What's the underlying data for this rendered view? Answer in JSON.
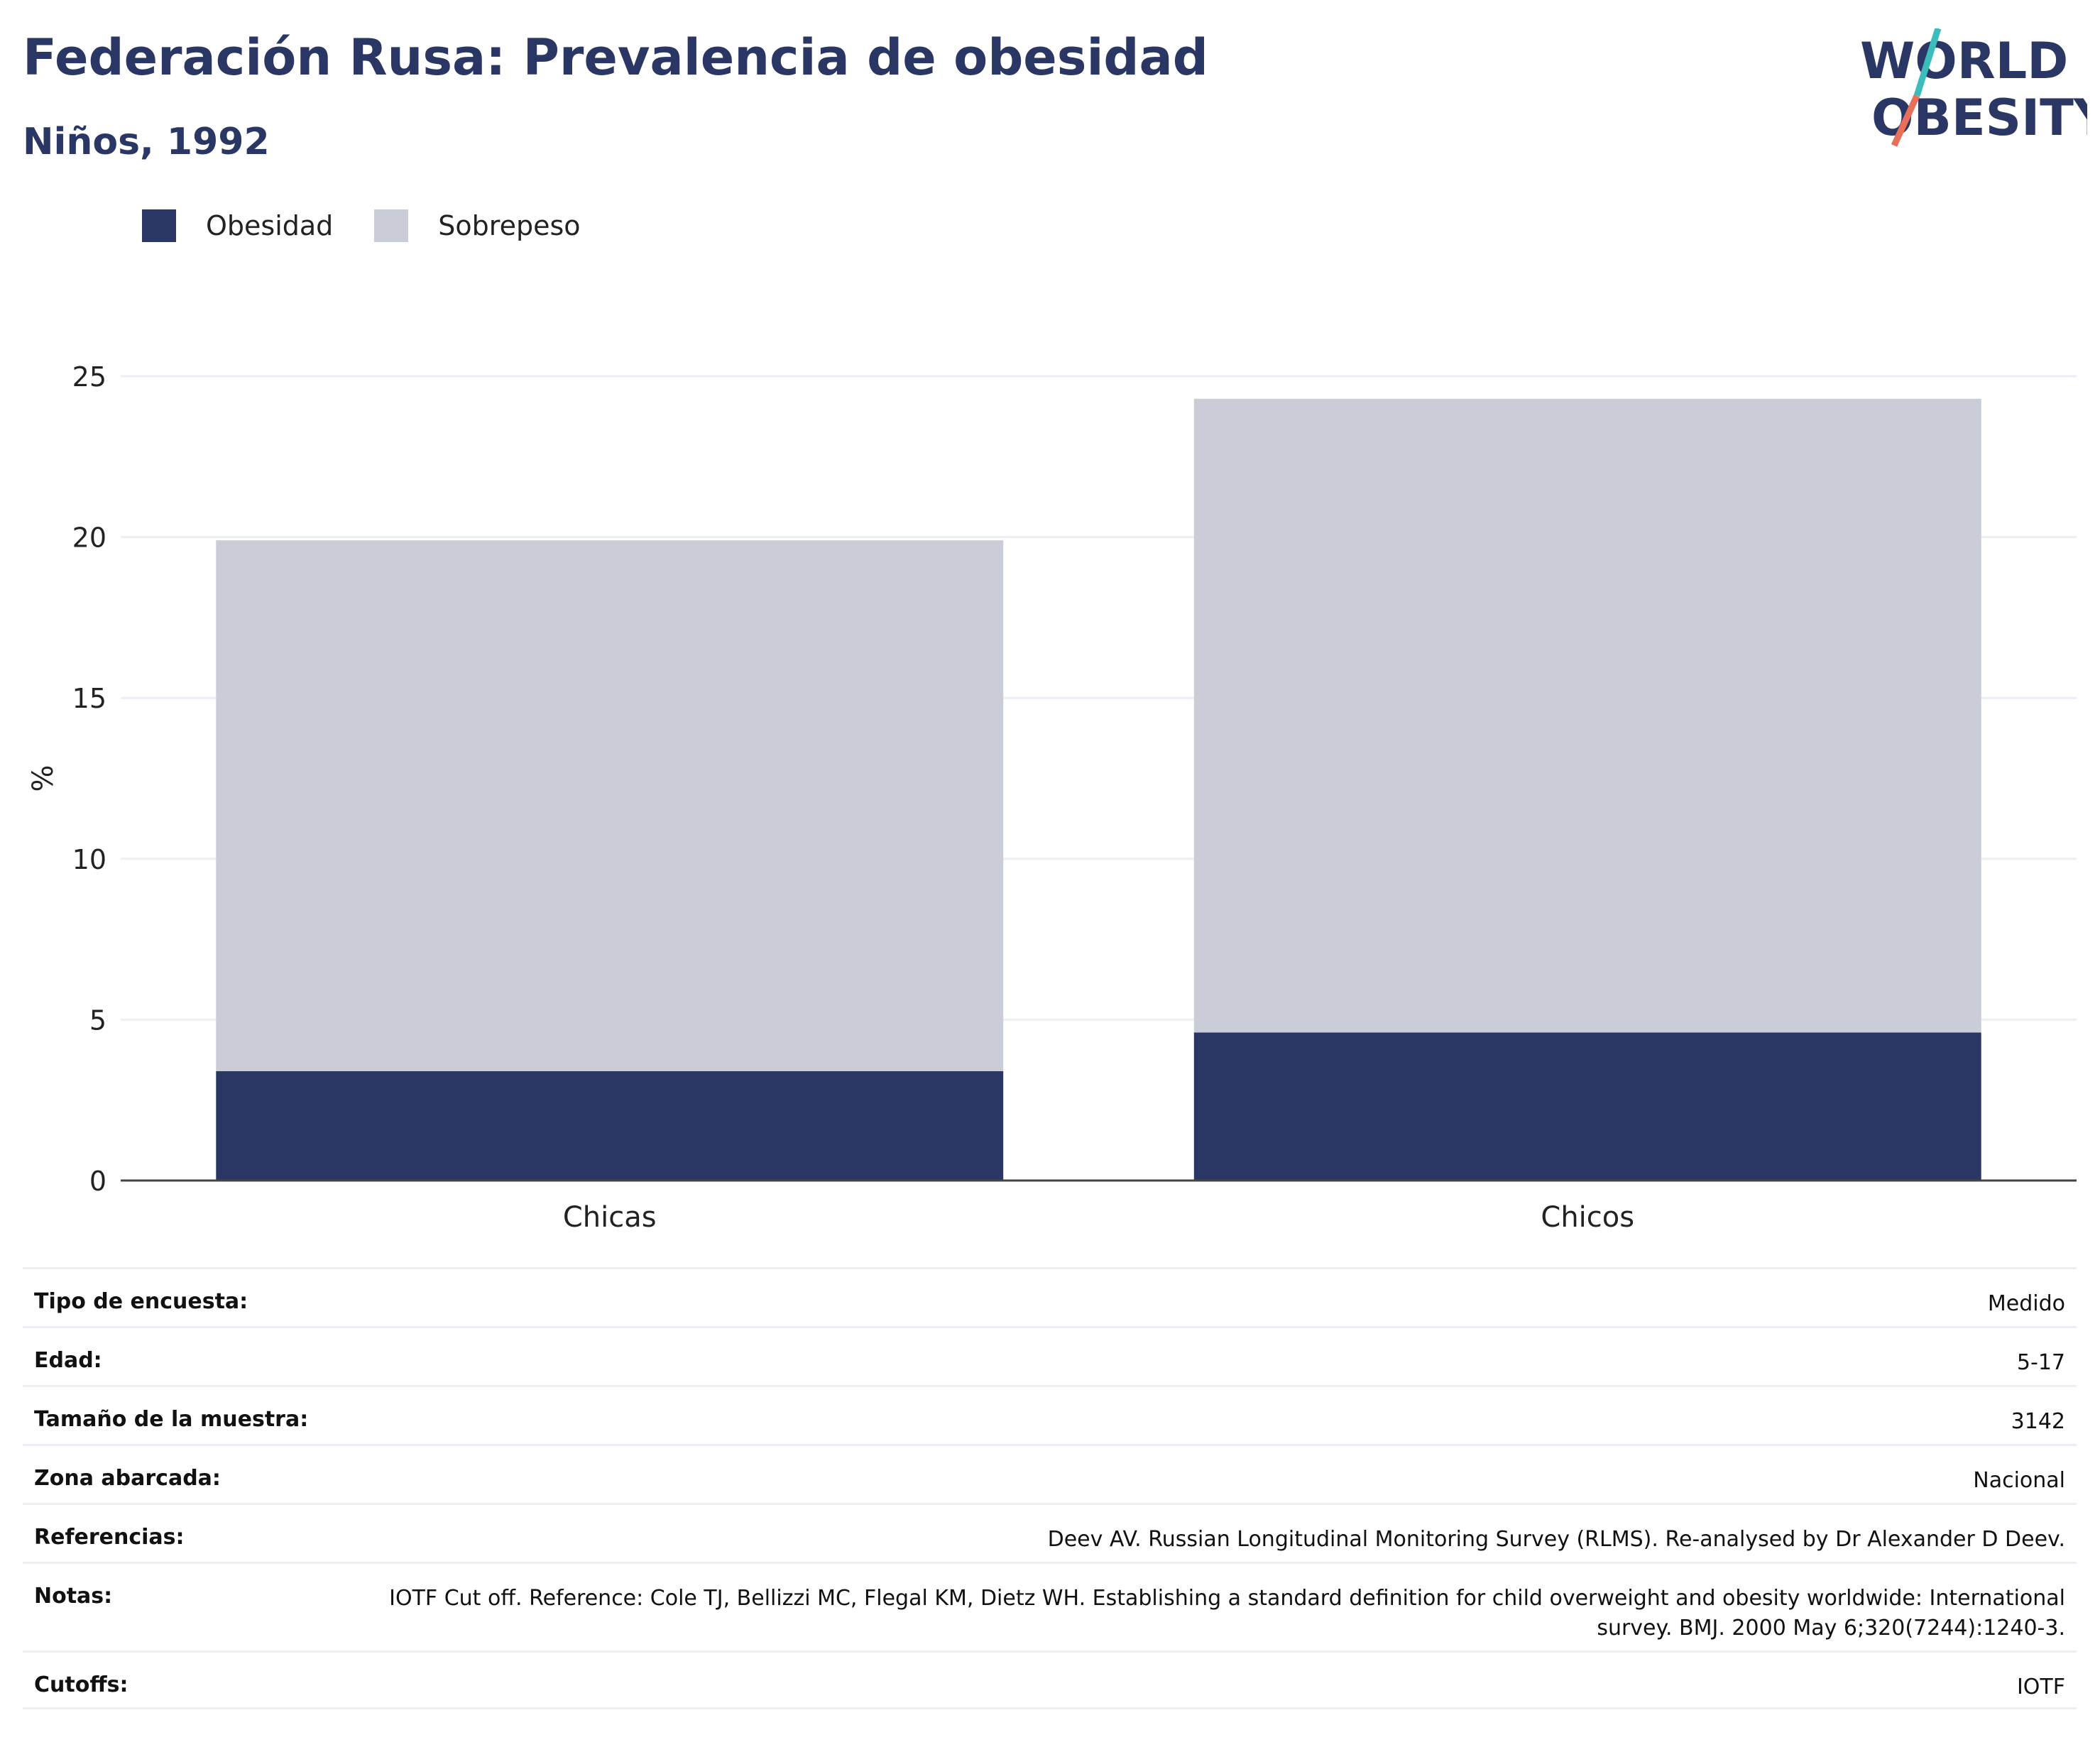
{
  "header": {
    "title": "Federación Rusa: Prevalencia de obesidad",
    "subtitle": "Niños, 1992"
  },
  "logo": {
    "line1": "WORLD",
    "line2": "OBESITY",
    "colors": {
      "text": "#2a3663",
      "slash_top": "#3dbcbc",
      "slash_bottom": "#e8705a"
    }
  },
  "chart_data": {
    "type": "bar",
    "stacked": true,
    "categories": [
      "Chicas",
      "Chicos"
    ],
    "series": [
      {
        "name": "Obesidad",
        "values": [
          3.4,
          4.6
        ],
        "color": "#2a3663"
      },
      {
        "name": "Sobrepeso",
        "values": [
          16.5,
          19.7
        ],
        "color": "#caccd8"
      }
    ],
    "ylabel": "%",
    "ylim": [
      0,
      25
    ],
    "yticks": [
      0,
      5,
      10,
      15,
      20,
      25
    ],
    "grid": true,
    "legend_position": "top-left"
  },
  "info_table": [
    {
      "label": "Tipo de encuesta:",
      "value": "Medido"
    },
    {
      "label": "Edad:",
      "value": "5-17"
    },
    {
      "label": "Tamaño de la muestra:",
      "value": "3142"
    },
    {
      "label": "Zona abarcada:",
      "value": "Nacional"
    },
    {
      "label": "Referencias:",
      "value": "Deev AV. Russian Longitudinal Monitoring Survey (RLMS). Re-analysed by Dr Alexander D Deev."
    },
    {
      "label": "Notas:",
      "value": "IOTF Cut off. Reference: Cole TJ, Bellizzi MC, Flegal KM, Dietz WH. Establishing a standard definition for child overweight and obesity worldwide: International survey. BMJ. 2000 May 6;320(7244):1240-3."
    },
    {
      "label": "Cutoffs:",
      "value": "IOTF"
    }
  ]
}
